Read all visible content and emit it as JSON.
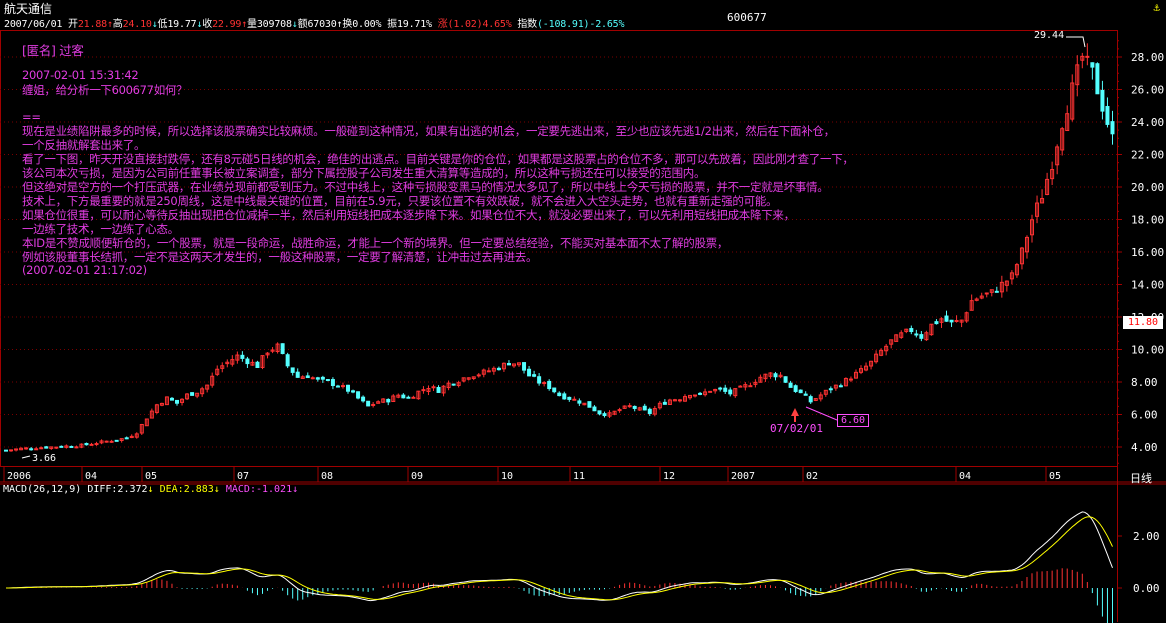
{
  "header": {
    "title": "航天通信",
    "date": "2007/06/01",
    "open_label": "开",
    "open": "21.88",
    "high_label": "高",
    "high": "24.10",
    "low_label": "低",
    "low": "19.77",
    "close_label": "收",
    "close": "22.99",
    "vol_label": "量",
    "vol": "309708",
    "amount_label": "额",
    "amount": "67030",
    "turnover_label": "换",
    "turnover": "0.00%",
    "amp_label": "振",
    "amp": "19.71%",
    "chg_label": "涨",
    "chg": "(1.02)4.65%",
    "index_label": "指数",
    "index": "(-108.91)-2.65%",
    "code": "600677"
  },
  "note": {
    "author": "[匿名] 过客",
    "time": "2007-02-01 15:31:42",
    "question": "缠姐，给分析一下600677如何？",
    "sep": "==",
    "lines": [
      "现在是业绩陷阱最多的时候，所以选择该股票确实比较麻烦。一般碰到这种情况，如果有出逃的机会，一定要先逃出来，至少也应该先逃1/2出来，然后在下面补仓，",
      "一个反抽就解套出来了。",
      "看了一下图，昨天开没直接封跌停，还有8元碰5日线的机会，绝佳的出逃点。目前关键是你的仓位，如果都是这股票占的仓位不多，那可以先放着，因此刚才查了一下，",
      "该公司本次亏损，是因为公司前任董事长被立案调查，部分下属控股子公司发生重大清算等造成的，所以这种亏损还在可以接受的范围内。",
      "但这绝对是空方的一个打压武器，在业绩兑现前都受到压力。不过中线上，这种亏损股变黑马的情况太多见了，所以中线上今天亏损的股票，并不一定就是坏事情。",
      "技术上，下方最重要的就是250周线，这是中线最关键的位置，目前在5.9元，只要该位置不有效跌破，就不会进入大空头走势，也就有重新走强的可能。",
      "如果仓位很重，可以耐心等待反抽出现把仓位减掉一半，然后利用短线把成本逐步降下来。如果仓位不大，就没必要出来了，可以先利用短线把成本降下来，",
      "一边练了技术，一边练了心态。",
      "本ID是不赞成顺便斩仓的，一个股票，就是一段命运，战胜命运，才能上一个新的境界。但一定要总结经验，不能买对基本面不太了解的股票，",
      "例如该股董事长结抓，一定不是这两天才发生的，一般这种股票，一定要了解清楚，让冲击过去再进去。",
      "(2007-02-01 21:17:02)"
    ]
  },
  "annotations": {
    "peak": "29.44",
    "low_start": "3.66",
    "marker_date": "07/02/01",
    "marker_price": "6.60",
    "last_price": "11.80",
    "period": "日线"
  },
  "macd": {
    "name": "MACD(26,12,9)",
    "diff_label": "DIFF:",
    "diff": "2.372",
    "dea_label": "DEA:",
    "dea": "2.883",
    "macd_label": "MACD:",
    "macd": "-1.021",
    "ticks": [
      "2.00",
      "0.00"
    ]
  },
  "colors": {
    "up": "#ff3232",
    "down": "#54ffff",
    "grid": "#7a0000",
    "axis": "#a00000",
    "note": "#e03ce0",
    "diff_line": "#ffffff",
    "dea_line": "#ffff00"
  },
  "chart_data": {
    "type": "candlestick",
    "title": "航天通信",
    "y_ticks": [
      4,
      6,
      8,
      10,
      12,
      14,
      16,
      18,
      20,
      22,
      24,
      26,
      28
    ],
    "ylim": [
      3,
      30
    ],
    "x_tick_labels": [
      "2006",
      "04",
      "05",
      "07",
      "08",
      "09",
      "10",
      "11",
      "12",
      "2007",
      "02",
      "04",
      "05"
    ],
    "series_close": [
      [
        0,
        3.8
      ],
      [
        6,
        3.9
      ],
      [
        12,
        3.95
      ],
      [
        18,
        4.0
      ],
      [
        24,
        4.05
      ],
      [
        30,
        4.1
      ],
      [
        36,
        4.25
      ],
      [
        42,
        4.4
      ],
      [
        48,
        4.55
      ],
      [
        52,
        4.9
      ],
      [
        56,
        5.8
      ],
      [
        60,
        6.6
      ],
      [
        64,
        7.0
      ],
      [
        68,
        6.7
      ],
      [
        72,
        7.2
      ],
      [
        76,
        7.4
      ],
      [
        80,
        7.8
      ],
      [
        84,
        8.8
      ],
      [
        88,
        9.2
      ],
      [
        92,
        9.6
      ],
      [
        96,
        9.3
      ],
      [
        100,
        9.0
      ],
      [
        104,
        9.9
      ],
      [
        108,
        10.2
      ],
      [
        112,
        9.0
      ],
      [
        116,
        8.3
      ],
      [
        120,
        8.4
      ],
      [
        124,
        8.1
      ],
      [
        128,
        8.0
      ],
      [
        132,
        7.8
      ],
      [
        136,
        7.5
      ],
      [
        140,
        7.0
      ],
      [
        144,
        6.5
      ],
      [
        148,
        6.8
      ],
      [
        152,
        6.9
      ],
      [
        156,
        7.2
      ],
      [
        160,
        7.0
      ],
      [
        164,
        7.4
      ],
      [
        168,
        7.7
      ],
      [
        172,
        7.5
      ],
      [
        176,
        7.9
      ],
      [
        180,
        8.1
      ],
      [
        184,
        8.4
      ],
      [
        188,
        8.5
      ],
      [
        192,
        8.7
      ],
      [
        196,
        8.9
      ],
      [
        200,
        9.2
      ],
      [
        204,
        9.1
      ],
      [
        208,
        8.4
      ],
      [
        212,
        8.0
      ],
      [
        216,
        7.7
      ],
      [
        220,
        7.2
      ],
      [
        224,
        7.0
      ],
      [
        228,
        6.8
      ],
      [
        232,
        6.5
      ],
      [
        236,
        6.1
      ],
      [
        240,
        6.0
      ],
      [
        244,
        6.3
      ],
      [
        248,
        6.5
      ],
      [
        252,
        6.3
      ],
      [
        256,
        6.1
      ],
      [
        260,
        6.6
      ],
      [
        264,
        6.9
      ],
      [
        268,
        7.0
      ],
      [
        272,
        7.3
      ],
      [
        276,
        7.2
      ],
      [
        280,
        7.5
      ],
      [
        284,
        7.5
      ],
      [
        288,
        7.3
      ],
      [
        292,
        7.6
      ],
      [
        296,
        7.9
      ],
      [
        300,
        8.3
      ],
      [
        304,
        8.5
      ],
      [
        308,
        8.4
      ],
      [
        312,
        7.7
      ],
      [
        316,
        7.3
      ],
      [
        320,
        6.8
      ],
      [
        324,
        7.2
      ],
      [
        328,
        7.6
      ],
      [
        332,
        7.9
      ],
      [
        336,
        8.3
      ],
      [
        340,
        8.7
      ],
      [
        344,
        9.2
      ],
      [
        348,
        9.9
      ],
      [
        352,
        10.5
      ],
      [
        356,
        10.9
      ],
      [
        360,
        11.2
      ],
      [
        364,
        10.8
      ],
      [
        368,
        11.5
      ],
      [
        372,
        11.9
      ],
      [
        376,
        11.6
      ],
      [
        380,
        11.8
      ],
      [
        384,
        13.0
      ],
      [
        388,
        13.3
      ],
      [
        392,
        13.5
      ],
      [
        396,
        14.0
      ],
      [
        400,
        14.5
      ],
      [
        404,
        16.0
      ],
      [
        408,
        18.0
      ],
      [
        412,
        19.5
      ],
      [
        416,
        21.5
      ],
      [
        420,
        24.0
      ],
      [
        424,
        26.0
      ],
      [
        428,
        28.0
      ],
      [
        432,
        27.0
      ],
      [
        436,
        25.0
      ],
      [
        440,
        22.99
      ]
    ]
  }
}
